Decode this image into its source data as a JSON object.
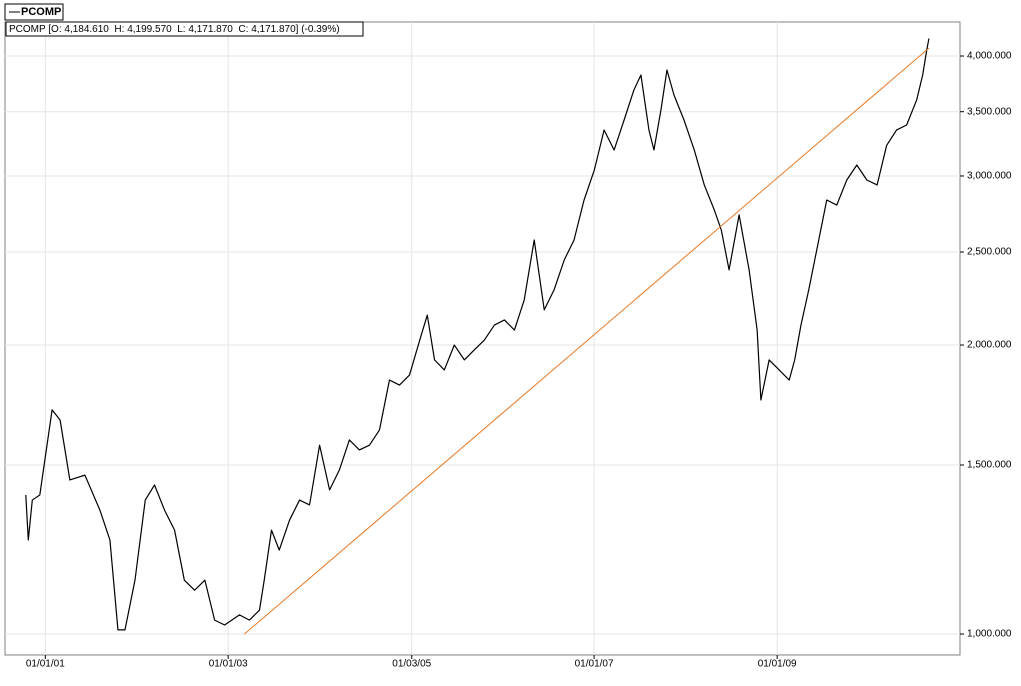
{
  "chart_data": {
    "type": "line",
    "legend_title": "PCOMP",
    "info_text": "PCOMP [O: 4,184.610  H: 4,199.570  L: 4,171.870  C: 4,171.870] (-0.39%)",
    "log_scale": true,
    "grid": true,
    "xlim": [
      "2000-07-24",
      "2011-01-01"
    ],
    "ylim": [
      951,
      4340
    ],
    "xticks": [
      {
        "value": "2001-01-01",
        "label": "01/01/01"
      },
      {
        "value": "2003-01-01",
        "label": "01/01/03"
      },
      {
        "value": "2005-01-03",
        "label": "01/03/05"
      },
      {
        "value": "2007-01-01",
        "label": "01/01/07"
      },
      {
        "value": "2009-01-01",
        "label": "01/01/09"
      }
    ],
    "yticks": [
      {
        "value": 1000,
        "label": "1,000.000"
      },
      {
        "value": 1500,
        "label": "1,500.000"
      },
      {
        "value": 2000,
        "label": "2,000.000"
      },
      {
        "value": 2500,
        "label": "2,500.000"
      },
      {
        "value": 3000,
        "label": "3,000.000"
      },
      {
        "value": 3500,
        "label": "3,500.000"
      },
      {
        "value": 4000,
        "label": "4,000.000"
      }
    ],
    "x": [
      "2000-10-15",
      "2000-10-25",
      "2000-11-10",
      "2000-12-10",
      "2001-01-28",
      "2001-03-01",
      "2001-04-09",
      "2001-06-08",
      "2001-08-07",
      "2001-09-16",
      "2001-10-18",
      "2001-11-15",
      "2001-12-25",
      "2002-02-04",
      "2002-03-13",
      "2002-04-22",
      "2002-06-01",
      "2002-07-10",
      "2002-08-20",
      "2002-09-30",
      "2002-11-08",
      "2002-12-18",
      "2003-02-15",
      "2003-03-27",
      "2003-05-06",
      "2003-05-25",
      "2003-06-23",
      "2003-07-24",
      "2003-09-03",
      "2003-10-13",
      "2003-11-22",
      "2004-01-01",
      "2004-02-10",
      "2004-03-20",
      "2004-04-29",
      "2004-06-08",
      "2004-07-18",
      "2004-08-27",
      "2004-10-06",
      "2004-11-15",
      "2004-12-25",
      "2005-02-04",
      "2005-03-06",
      "2005-04-04",
      "2005-05-13",
      "2005-06-22",
      "2005-08-01",
      "2005-09-10",
      "2005-10-20",
      "2005-11-29",
      "2006-01-08",
      "2006-02-17",
      "2006-03-28",
      "2006-05-07",
      "2006-06-16",
      "2006-07-25",
      "2006-09-04",
      "2006-10-13",
      "2006-11-22",
      "2007-01-02",
      "2007-02-10",
      "2007-03-22",
      "2007-05-01",
      "2007-06-09",
      "2007-07-07",
      "2007-08-08",
      "2007-08-28",
      "2007-09-25",
      "2007-10-19",
      "2007-11-16",
      "2007-12-26",
      "2008-02-05",
      "2008-03-16",
      "2008-04-25",
      "2008-05-23",
      "2008-06-23",
      "2008-08-02",
      "2008-09-11",
      "2008-10-13",
      "2008-10-28",
      "2008-11-30",
      "2009-01-09",
      "2009-02-18",
      "2009-03-12",
      "2009-04-06",
      "2009-05-07",
      "2009-06-08",
      "2009-07-18",
      "2009-08-27",
      "2009-10-06",
      "2009-11-15",
      "2009-12-25",
      "2010-02-04",
      "2010-03-14",
      "2010-04-23",
      "2010-06-02",
      "2010-07-12",
      "2010-08-05",
      "2010-08-21",
      "2010-08-30"
    ],
    "series": [
      {
        "name": "PCOMP",
        "color": "#000000",
        "values": [
          1396,
          1253,
          1379,
          1396,
          1712,
          1671,
          1447,
          1464,
          1346,
          1253,
          1010,
          1010,
          1138,
          1379,
          1430,
          1346,
          1283,
          1138,
          1111,
          1138,
          1034,
          1022,
          1047,
          1034,
          1059,
          1138,
          1283,
          1223,
          1314,
          1379,
          1363,
          1573,
          1413,
          1482,
          1593,
          1555,
          1573,
          1631,
          1839,
          1817,
          1861,
          2024,
          2149,
          1930,
          1884,
          2000,
          1930,
          1977,
          2024,
          2098,
          2124,
          2073,
          2228,
          2573,
          2176,
          2282,
          2453,
          2573,
          2832,
          3043,
          3350,
          3193,
          3431,
          3687,
          3822,
          3350,
          3193,
          3515,
          3868,
          3643,
          3431,
          3193,
          2936,
          2765,
          2635,
          2395,
          2733,
          2395,
          2073,
          1753,
          1930,
          1884,
          1839,
          1930,
          2098,
          2282,
          2512,
          2832,
          2798,
          2971,
          3080,
          2971,
          2936,
          3228,
          3350,
          3390,
          3600,
          3822,
          4056,
          4172
        ]
      }
    ],
    "trendline": {
      "color": "#e87722",
      "x": [
        "2003-03-07",
        "2010-08-30"
      ],
      "values": [
        1000,
        4077
      ]
    }
  }
}
